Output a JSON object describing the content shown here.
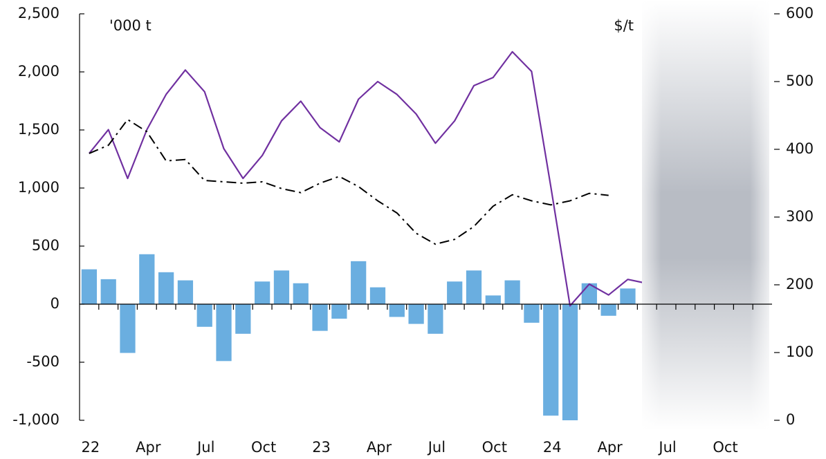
{
  "chart_data": {
    "type": "bar",
    "unit_left": "'000 t",
    "unit_right": "$/t",
    "categories": [
      "22",
      null,
      null,
      "Apr",
      null,
      null,
      "Jul",
      null,
      null,
      "Oct",
      null,
      null,
      "23",
      null,
      null,
      "Apr",
      null,
      null,
      "Jul",
      null,
      null,
      "Oct",
      null,
      null,
      "24",
      null,
      null,
      "Apr",
      null,
      null,
      "Jul",
      null,
      null,
      "Oct",
      null,
      null
    ],
    "ylim": [
      -1000,
      2500
    ],
    "yticks": [
      {
        "value": -1000,
        "label": "-1,000"
      },
      {
        "value": -500,
        "label": "-500"
      },
      0,
      500,
      {
        "value": 1000,
        "label": "1,000"
      },
      {
        "value": 1500,
        "label": "1,500"
      },
      {
        "value": 2000,
        "label": "2,000"
      },
      {
        "value": 2500,
        "label": "2,500"
      }
    ],
    "y2lim": [
      0,
      600
    ],
    "y2ticks": [
      0,
      100,
      200,
      300,
      400,
      500,
      600
    ],
    "series": [
      {
        "type": "bar",
        "color": "#6aaee0",
        "values": [
          300,
          215,
          -420,
          430,
          275,
          205,
          -195,
          -490,
          -255,
          195,
          290,
          180,
          -230,
          -125,
          370,
          145,
          -110,
          -170,
          -255,
          195,
          290,
          75,
          205,
          -160,
          -960,
          -1000,
          180,
          -100,
          135,
          null,
          null,
          null,
          null,
          null,
          null,
          null
        ]
      },
      {
        "type": "line",
        "axis": "y2",
        "color": "#7030a0",
        "values": [
          394,
          429,
          357,
          429,
          481,
          517,
          485,
          401,
          357,
          391,
          442,
          471,
          432,
          411,
          474,
          500,
          481,
          452,
          409,
          442,
          494,
          506,
          544,
          515,
          345,
          169,
          201,
          185,
          208,
          202,
          null,
          null,
          null,
          null,
          null,
          null
        ]
      },
      {
        "type": "line",
        "axis": "y2",
        "color": "#000000",
        "dash": true,
        "values": [
          394,
          406,
          444,
          426,
          383,
          385,
          354,
          352,
          350,
          352,
          342,
          336,
          350,
          360,
          345,
          324,
          306,
          276,
          260,
          267,
          286,
          316,
          333,
          324,
          318,
          324,
          335,
          332,
          null,
          null,
          null,
          null,
          null,
          null,
          null,
          null
        ]
      }
    ]
  }
}
